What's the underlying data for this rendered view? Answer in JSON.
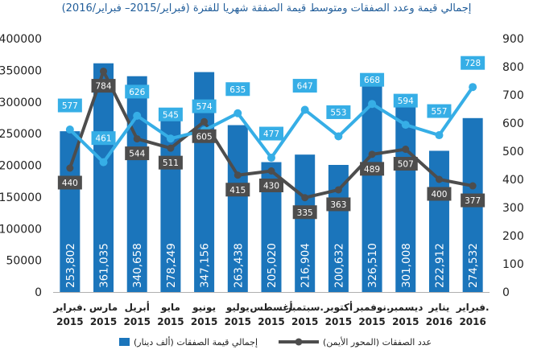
{
  "chart_data": {
    "type": "bar",
    "title": "إجمالي قيمة وعدد الصفقات ومتوسط قيمة الصفقة شهريا للفترة (فبراير/2015– فبراير/2016)",
    "categories": [
      [
        "فبراير.",
        "2015"
      ],
      [
        "مارس",
        "2015"
      ],
      [
        "أبريل",
        "2015"
      ],
      [
        "مايو",
        "2015"
      ],
      [
        "يونيو",
        "2015"
      ],
      [
        "يوليو",
        "2015"
      ],
      [
        "أغسطس",
        "2015"
      ],
      [
        "سبتمبر.",
        "2015"
      ],
      [
        "أكتوبر",
        "2015"
      ],
      [
        "نوفمبر.",
        "2015"
      ],
      [
        "ديسمبر",
        "2015"
      ],
      [
        "يناير",
        "2016"
      ],
      [
        "فبراير.",
        "2016"
      ]
    ],
    "bars": {
      "name": "إجمالي قيمة الصفقات (ألف دينار)",
      "values": [
        253802,
        361035,
        340658,
        278249,
        347156,
        263438,
        205020,
        216904,
        200632,
        326510,
        301008,
        222912,
        274532
      ],
      "labels": [
        "253,802",
        "361,035",
        "340,658",
        "278,249",
        "347,156",
        "263,438",
        "205,020",
        "216,904",
        "200,632",
        "326,510",
        "301,008",
        "222,912",
        "274,532"
      ]
    },
    "deals": {
      "name": "عدد الصفقات (المحور الأيمن)",
      "values": [
        440,
        784,
        544,
        511,
        605,
        415,
        430,
        335,
        363,
        489,
        507,
        400,
        377
      ]
    },
    "average": {
      "values": [
        577,
        461,
        626,
        545,
        574,
        635,
        477,
        647,
        553,
        668,
        594,
        557,
        728
      ]
    },
    "y_left": {
      "range": [
        0,
        400000
      ],
      "ticks": [
        "0",
        "50000",
        "100000",
        "150000",
        "200000",
        "250000",
        "300000",
        "350000",
        "400000"
      ]
    },
    "y_right": {
      "range": [
        0,
        900
      ],
      "ticks": [
        "0",
        "100",
        "200",
        "300",
        "400",
        "500",
        "600",
        "700",
        "800",
        "900"
      ]
    },
    "grid": false,
    "legend_position": "bottom",
    "colors": {
      "bars": "#1b75bb",
      "deals": "#4d4d4d",
      "average": "#36aee6",
      "title": "#1f5c99"
    }
  }
}
